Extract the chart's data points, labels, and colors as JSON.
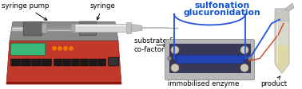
{
  "bg_color": "#ffffff",
  "labels": {
    "syringe_pump": "syringe pump",
    "syringe": "syringe",
    "substrate": "substrate &\nco-factor",
    "immobilised": "immobilised enzyme",
    "product": "product",
    "sulfonation": "sulfonation",
    "glucuronidation": "glucuronidation"
  },
  "colors": {
    "pump_body": "#c0392b",
    "pump_shadow": "#8b1a10",
    "pump_gray_top": "#8a8a8a",
    "rail_light": "#c0c0c0",
    "carriage": "#686868",
    "display_green": "#3ab87a",
    "btn_dark": "#1a1a1a",
    "syringe_barrel": "#c8c8c8",
    "syringe_plunger": "#888888",
    "syringe_needle": "#b0b0b0",
    "chip_platform": "#b8b8b8",
    "chip_platform_edge": "#909090",
    "chip_surface": "#383858",
    "chip_channel": "#2244b0",
    "chip_connector": "#c0c0c0",
    "tubing_blue": "#2255dd",
    "tubing_red": "#cc4422",
    "tubing_gray": "#999999",
    "vial_glass": "#d8d8cc",
    "vial_liquid": "#ddd8a8",
    "vial_cap": "#c8c8c0",
    "arrow_color": "#000000",
    "label_color": "#000000",
    "reaction_color": "#1155cc"
  },
  "figsize": [
    3.78,
    1.12
  ],
  "dpi": 100
}
